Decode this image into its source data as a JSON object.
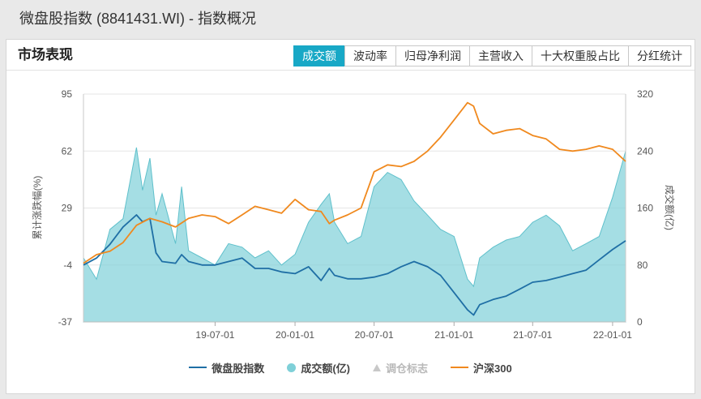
{
  "header": {
    "title": "微盘股指数 (8841431.WI) - 指数概况"
  },
  "panel": {
    "title": "市场表现",
    "tabs": [
      {
        "label": "成交额",
        "active": true
      },
      {
        "label": "波动率",
        "active": false
      },
      {
        "label": "归母净利润",
        "active": false
      },
      {
        "label": "主营收入",
        "active": false
      },
      {
        "label": "十大权重股占比",
        "active": false
      },
      {
        "label": "分红统计",
        "active": false
      }
    ]
  },
  "legend": [
    {
      "label": "微盘股指数",
      "color": "#1f6fa5",
      "marker": "line",
      "muted": false
    },
    {
      "label": "成交额(亿)",
      "color": "#7fd0d8",
      "marker": "dot",
      "muted": false
    },
    {
      "label": "调仓标志",
      "color": "#c8c8c8",
      "marker": "triangle",
      "muted": true
    },
    {
      "label": "沪深300",
      "color": "#f0891e",
      "marker": "line",
      "muted": false
    }
  ],
  "chart_data": {
    "type": "line",
    "x_start": "2018-09-01",
    "x_end": "2022-01-31",
    "x_ticks": [
      "19-07-01",
      "20-01-01",
      "20-07-01",
      "21-01-01",
      "21-07-01",
      "22-01-01"
    ],
    "y_left": {
      "label": "累计涨跌幅(%)",
      "ticks": [
        "95",
        "62",
        "29",
        "-4",
        "-37"
      ],
      "min": -37,
      "max": 95
    },
    "y_right": {
      "label": "成交额(亿)",
      "ticks": [
        "320",
        "240",
        "160",
        "80",
        "0"
      ],
      "min": 0,
      "max": 320
    },
    "grid": true,
    "series": [
      {
        "name": "微盘股指数",
        "axis": "left",
        "kind": "line",
        "color": "#1f6fa5",
        "points": [
          [
            "2018-09-01",
            -4
          ],
          [
            "2018-10-01",
            0
          ],
          [
            "2018-11-01",
            8
          ],
          [
            "2018-12-01",
            18
          ],
          [
            "2019-01-01",
            25
          ],
          [
            "2019-01-15",
            21
          ],
          [
            "2019-02-01",
            23
          ],
          [
            "2019-02-15",
            3
          ],
          [
            "2019-03-01",
            -2
          ],
          [
            "2019-04-01",
            -3
          ],
          [
            "2019-04-15",
            2
          ],
          [
            "2019-05-01",
            -2
          ],
          [
            "2019-06-01",
            -4
          ],
          [
            "2019-07-01",
            -4
          ],
          [
            "2019-08-01",
            -2
          ],
          [
            "2019-09-01",
            0
          ],
          [
            "2019-10-01",
            -6
          ],
          [
            "2019-11-01",
            -6
          ],
          [
            "2019-12-01",
            -8
          ],
          [
            "2020-01-01",
            -9
          ],
          [
            "2020-02-01",
            -5
          ],
          [
            "2020-03-01",
            -13
          ],
          [
            "2020-03-20",
            -6
          ],
          [
            "2020-04-01",
            -10
          ],
          [
            "2020-05-01",
            -12
          ],
          [
            "2020-06-01",
            -12
          ],
          [
            "2020-07-01",
            -11
          ],
          [
            "2020-08-01",
            -9
          ],
          [
            "2020-09-01",
            -5
          ],
          [
            "2020-10-01",
            -2
          ],
          [
            "2020-11-01",
            -5
          ],
          [
            "2020-12-01",
            -10
          ],
          [
            "2021-01-01",
            -20
          ],
          [
            "2021-02-01",
            -30
          ],
          [
            "2021-02-15",
            -33
          ],
          [
            "2021-03-01",
            -27
          ],
          [
            "2021-04-01",
            -24
          ],
          [
            "2021-05-01",
            -22
          ],
          [
            "2021-06-01",
            -18
          ],
          [
            "2021-07-01",
            -14
          ],
          [
            "2021-08-01",
            -13
          ],
          [
            "2021-09-01",
            -11
          ],
          [
            "2021-10-01",
            -9
          ],
          [
            "2021-11-01",
            -7
          ],
          [
            "2021-12-01",
            -1
          ],
          [
            "2022-01-01",
            5
          ],
          [
            "2022-01-31",
            10
          ]
        ]
      },
      {
        "name": "沪深300",
        "axis": "left",
        "kind": "line",
        "color": "#f0891e",
        "points": [
          [
            "2018-09-01",
            -3
          ],
          [
            "2018-10-01",
            2
          ],
          [
            "2018-11-01",
            4
          ],
          [
            "2018-12-01",
            9
          ],
          [
            "2019-01-01",
            19
          ],
          [
            "2019-02-01",
            23
          ],
          [
            "2019-03-01",
            21
          ],
          [
            "2019-04-01",
            18
          ],
          [
            "2019-05-01",
            23
          ],
          [
            "2019-06-01",
            25
          ],
          [
            "2019-07-01",
            24
          ],
          [
            "2019-08-01",
            20
          ],
          [
            "2019-09-01",
            25
          ],
          [
            "2019-10-01",
            30
          ],
          [
            "2019-11-01",
            28
          ],
          [
            "2019-12-01",
            26
          ],
          [
            "2020-01-01",
            34
          ],
          [
            "2020-02-01",
            28
          ],
          [
            "2020-03-01",
            27
          ],
          [
            "2020-03-20",
            20
          ],
          [
            "2020-04-01",
            22
          ],
          [
            "2020-05-01",
            25
          ],
          [
            "2020-06-01",
            29
          ],
          [
            "2020-07-01",
            50
          ],
          [
            "2020-08-01",
            54
          ],
          [
            "2020-09-01",
            53
          ],
          [
            "2020-10-01",
            56
          ],
          [
            "2020-11-01",
            62
          ],
          [
            "2020-12-01",
            70
          ],
          [
            "2021-01-01",
            80
          ],
          [
            "2021-02-01",
            90
          ],
          [
            "2021-02-15",
            88
          ],
          [
            "2021-03-01",
            78
          ],
          [
            "2021-04-01",
            72
          ],
          [
            "2021-05-01",
            74
          ],
          [
            "2021-06-01",
            75
          ],
          [
            "2021-07-01",
            71
          ],
          [
            "2021-08-01",
            69
          ],
          [
            "2021-09-01",
            63
          ],
          [
            "2021-10-01",
            62
          ],
          [
            "2021-11-01",
            63
          ],
          [
            "2021-12-01",
            65
          ],
          [
            "2022-01-01",
            63
          ],
          [
            "2022-01-31",
            56
          ]
        ]
      },
      {
        "name": "成交额(亿)",
        "axis": "right",
        "kind": "area",
        "color": "#7fd0d8",
        "points": [
          [
            "2018-09-01",
            90
          ],
          [
            "2018-10-01",
            60
          ],
          [
            "2018-11-01",
            130
          ],
          [
            "2018-12-01",
            145
          ],
          [
            "2019-01-01",
            245
          ],
          [
            "2019-01-15",
            185
          ],
          [
            "2019-02-01",
            230
          ],
          [
            "2019-02-15",
            150
          ],
          [
            "2019-03-01",
            180
          ],
          [
            "2019-04-01",
            110
          ],
          [
            "2019-04-15",
            190
          ],
          [
            "2019-05-01",
            100
          ],
          [
            "2019-06-01",
            90
          ],
          [
            "2019-07-01",
            80
          ],
          [
            "2019-08-01",
            110
          ],
          [
            "2019-09-01",
            105
          ],
          [
            "2019-10-01",
            90
          ],
          [
            "2019-11-01",
            100
          ],
          [
            "2019-12-01",
            80
          ],
          [
            "2020-01-01",
            95
          ],
          [
            "2020-02-01",
            140
          ],
          [
            "2020-03-01",
            165
          ],
          [
            "2020-03-20",
            180
          ],
          [
            "2020-04-01",
            140
          ],
          [
            "2020-05-01",
            110
          ],
          [
            "2020-06-01",
            120
          ],
          [
            "2020-07-01",
            190
          ],
          [
            "2020-08-01",
            210
          ],
          [
            "2020-09-01",
            200
          ],
          [
            "2020-10-01",
            170
          ],
          [
            "2020-11-01",
            150
          ],
          [
            "2020-12-01",
            130
          ],
          [
            "2021-01-01",
            120
          ],
          [
            "2021-02-01",
            60
          ],
          [
            "2021-02-15",
            50
          ],
          [
            "2021-03-01",
            90
          ],
          [
            "2021-04-01",
            105
          ],
          [
            "2021-05-01",
            115
          ],
          [
            "2021-06-01",
            120
          ],
          [
            "2021-07-01",
            140
          ],
          [
            "2021-08-01",
            150
          ],
          [
            "2021-09-01",
            135
          ],
          [
            "2021-10-01",
            100
          ],
          [
            "2021-11-01",
            110
          ],
          [
            "2021-12-01",
            120
          ],
          [
            "2022-01-01",
            175
          ],
          [
            "2022-01-31",
            240
          ]
        ]
      }
    ]
  }
}
